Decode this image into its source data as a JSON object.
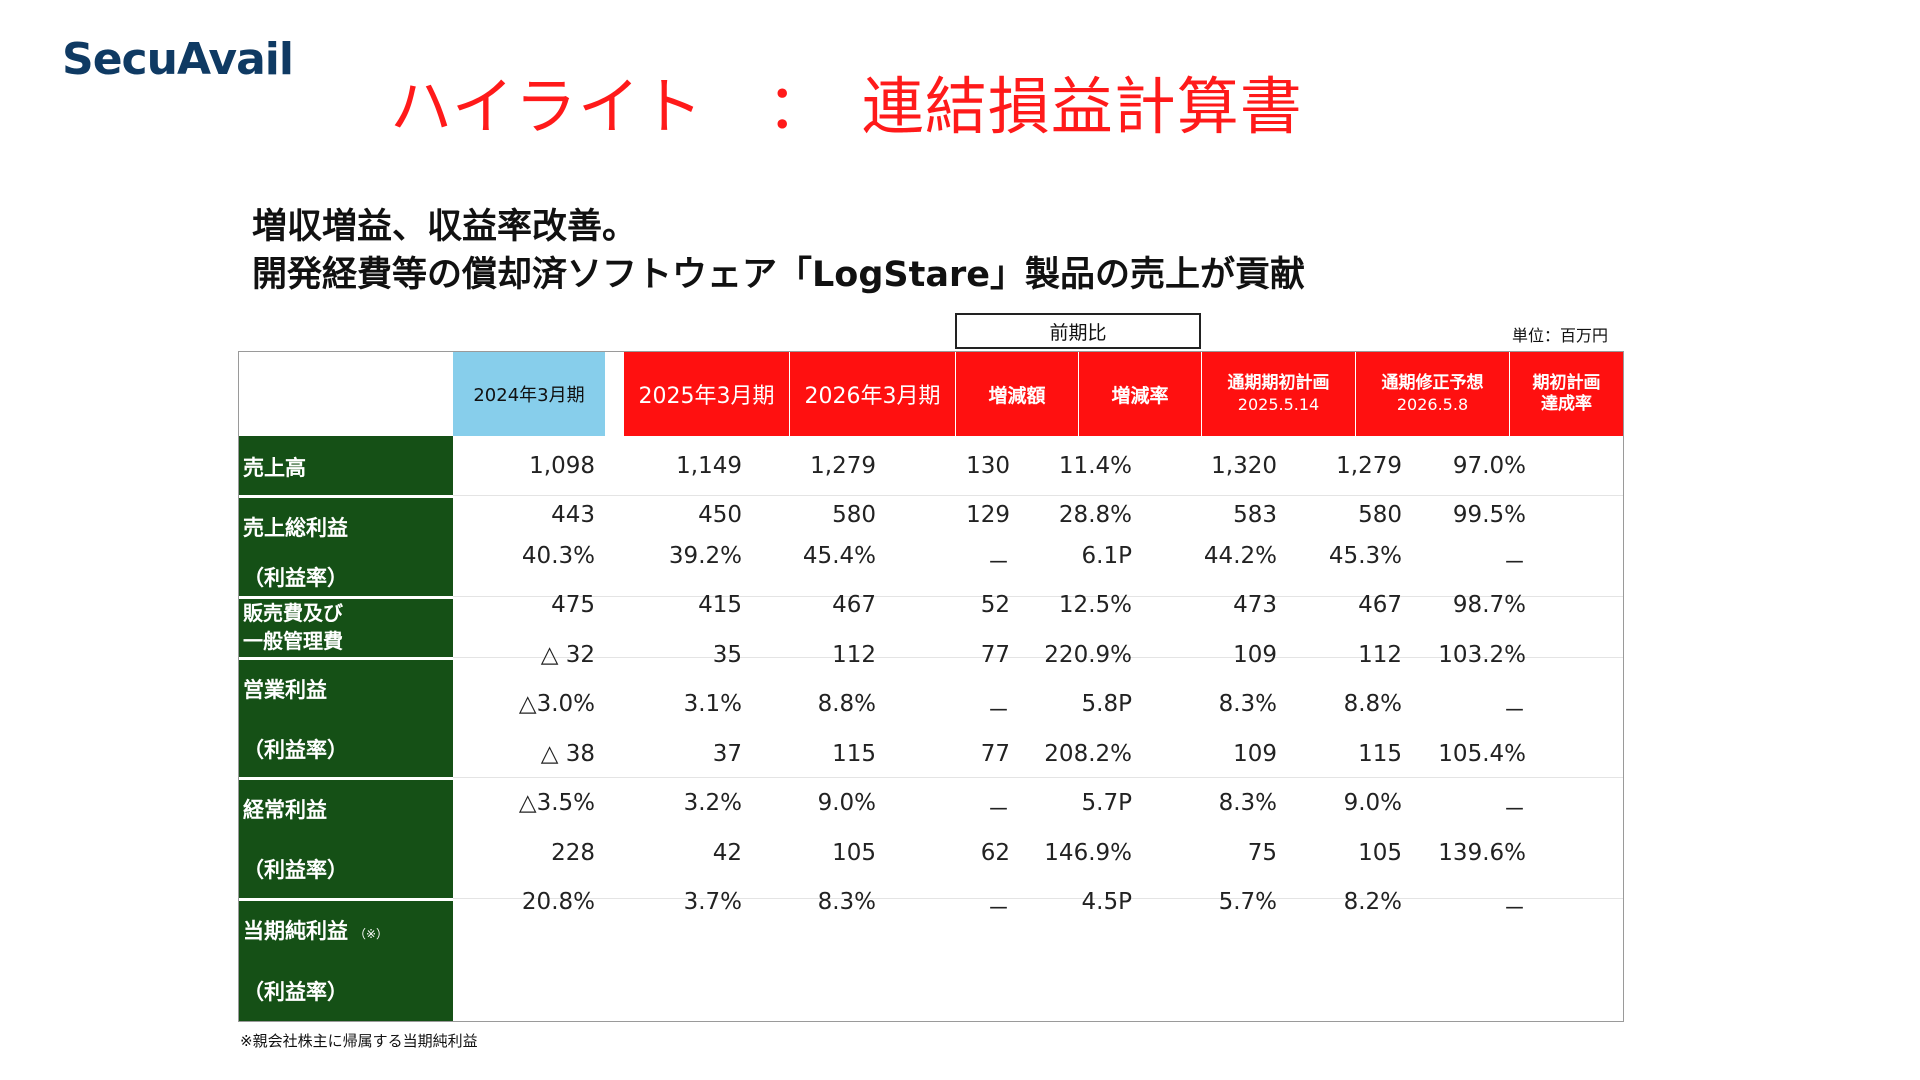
{
  "logo": "SecuAvail",
  "title": "ハイライト　：　連結損益計算書",
  "subtitle1": "増収増益、収益率改善。",
  "subtitle2": "開発経費等の償却済ソフトウェア「LogStare」製品の売上が貢献",
  "unit": "単位：百万円",
  "yoy_label": "前期比",
  "headers": {
    "fy2024": "2024年3月期",
    "fy2025": "2025年3月期",
    "fy2026": "2026年3月期",
    "change_amount": "増減額",
    "change_rate": "増減率",
    "initial_plan_l1": "通期期初計画",
    "initial_plan_l2": "2025.5.14",
    "revised_plan_l1": "通期修正予想",
    "revised_plan_l2": "2026.5.8",
    "achievement_l1": "期初計画",
    "achievement_l2": "達成率"
  },
  "row_labels": {
    "sales": "売上高",
    "gross_profit": "売上総利益",
    "gp_margin": "（利益率）",
    "sga_l1": "販売費及び",
    "sga_l2": "一般管理費",
    "operating_profit": "営業利益",
    "op_margin": "（利益率）",
    "ordinary_profit": "経常利益",
    "ord_margin": "（利益率）",
    "net_income": "当期純利益",
    "net_income_note": "（※）",
    "ni_margin": "（利益率）"
  },
  "rows": [
    [
      "1,098",
      "1,149",
      "1,279",
      "130",
      "11.4%",
      "1,320",
      "1,279",
      "97.0%"
    ],
    [
      "443",
      "450",
      "580",
      "129",
      "28.8%",
      "583",
      "580",
      "99.5%"
    ],
    [
      "40.3%",
      "39.2%",
      "45.4%",
      "－",
      "6.1P",
      "44.2%",
      "45.3%",
      "－"
    ],
    [
      "475",
      "415",
      "467",
      "52",
      "12.5%",
      "473",
      "467",
      "98.7%"
    ],
    [
      "△ 32",
      "35",
      "112",
      "77",
      "220.9%",
      "109",
      "112",
      "103.2%"
    ],
    [
      "△3.0%",
      "3.1%",
      "8.8%",
      "－",
      "5.8P",
      "8.3%",
      "8.8%",
      "－"
    ],
    [
      "△ 38",
      "37",
      "115",
      "77",
      "208.2%",
      "109",
      "115",
      "105.4%"
    ],
    [
      "△3.5%",
      "3.2%",
      "9.0%",
      "－",
      "5.7P",
      "8.3%",
      "9.0%",
      "－"
    ],
    [
      "228",
      "42",
      "105",
      "62",
      "146.9%",
      "75",
      "105",
      "139.6%"
    ],
    [
      "20.8%",
      "3.7%",
      "8.3%",
      "－",
      "4.5P",
      "5.7%",
      "8.2%",
      "－"
    ]
  ],
  "footnote": "※親会社株主に帰属する当期純利益"
}
